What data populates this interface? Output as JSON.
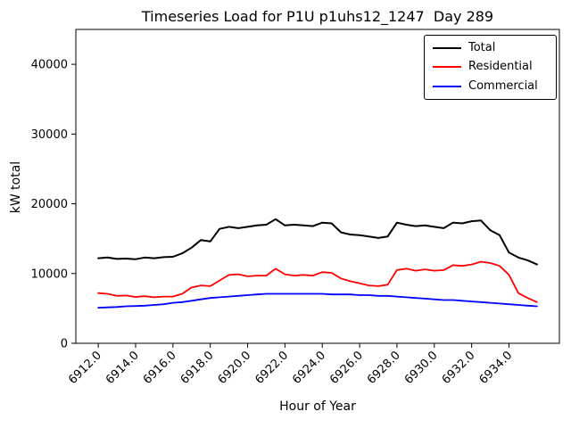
{
  "figure": {
    "title": "Timeseries Load for P1U p1uhs12_1247  Day 289",
    "xlabel": "Hour of Year",
    "ylabel": "kW total"
  },
  "chart_data": {
    "type": "line",
    "title": "Timeseries Load for P1U p1uhs12_1247  Day 289",
    "xlabel": "Hour of Year",
    "ylabel": "kW total",
    "xlim": [
      6910.8,
      6936.7
    ],
    "ylim": [
      0,
      45000
    ],
    "grid": false,
    "legend_position": "upper right",
    "xticks": [
      6912,
      6914,
      6916,
      6918,
      6920,
      6922,
      6924,
      6926,
      6928,
      6930,
      6932,
      6934
    ],
    "xtick_labels": [
      "6912.0",
      "6914.0",
      "6916.0",
      "6918.0",
      "6920.0",
      "6922.0",
      "6924.0",
      "6926.0",
      "6928.0",
      "6930.0",
      "6932.0",
      "6934.0"
    ],
    "yticks": [
      0,
      10000,
      20000,
      30000,
      40000
    ],
    "ytick_labels": [
      "0",
      "10000",
      "20000",
      "30000",
      "40000"
    ],
    "x": [
      6912.0,
      6912.5,
      6913.0,
      6913.5,
      6914.0,
      6914.5,
      6915.0,
      6915.5,
      6916.0,
      6916.5,
      6917.0,
      6917.5,
      6918.0,
      6918.5,
      6919.0,
      6919.5,
      6920.0,
      6920.5,
      6921.0,
      6921.5,
      6922.0,
      6922.5,
      6923.0,
      6923.5,
      6924.0,
      6924.5,
      6925.0,
      6925.5,
      6926.0,
      6926.5,
      6927.0,
      6927.5,
      6928.0,
      6928.5,
      6929.0,
      6929.5,
      6930.0,
      6930.5,
      6931.0,
      6931.5,
      6932.0,
      6932.5,
      6933.0,
      6933.5,
      6934.0,
      6934.5,
      6935.0,
      6935.5
    ],
    "series": [
      {
        "name": "Total",
        "color": "#000000",
        "values": [
          12200,
          12300,
          12100,
          12150,
          12050,
          12300,
          12200,
          12350,
          12400,
          12900,
          13700,
          14800,
          14600,
          16400,
          16700,
          16500,
          16700,
          16900,
          17000,
          17800,
          16900,
          17000,
          16900,
          16800,
          17300,
          17200,
          15900,
          15600,
          15500,
          15300,
          15100,
          15300,
          17300,
          17000,
          16800,
          16900,
          16700,
          16500,
          17300,
          17200,
          17500,
          17600,
          16200,
          15500,
          13000,
          12300,
          11900,
          11300
        ]
      },
      {
        "name": "Residential",
        "color": "#ff0000",
        "values": [
          7200,
          7100,
          6800,
          6850,
          6650,
          6750,
          6600,
          6700,
          6700,
          7100,
          8000,
          8300,
          8200,
          9000,
          9800,
          9900,
          9600,
          9700,
          9700,
          10700,
          9900,
          9700,
          9800,
          9700,
          10200,
          10100,
          9300,
          8900,
          8600,
          8300,
          8200,
          8400,
          10500,
          10700,
          10400,
          10600,
          10400,
          10500,
          11200,
          11100,
          11300,
          11700,
          11500,
          11100,
          9800,
          7200,
          6500,
          5900
        ]
      },
      {
        "name": "Commercial",
        "color": "#0000ff",
        "values": [
          5100,
          5150,
          5200,
          5300,
          5350,
          5400,
          5500,
          5600,
          5800,
          5900,
          6100,
          6300,
          6500,
          6600,
          6700,
          6800,
          6900,
          7000,
          7100,
          7100,
          7100,
          7100,
          7100,
          7100,
          7100,
          7000,
          7000,
          7000,
          6900,
          6900,
          6800,
          6800,
          6700,
          6600,
          6500,
          6400,
          6300,
          6200,
          6200,
          6100,
          6000,
          5900,
          5800,
          5700,
          5600,
          5500,
          5400,
          5300
        ]
      }
    ]
  }
}
